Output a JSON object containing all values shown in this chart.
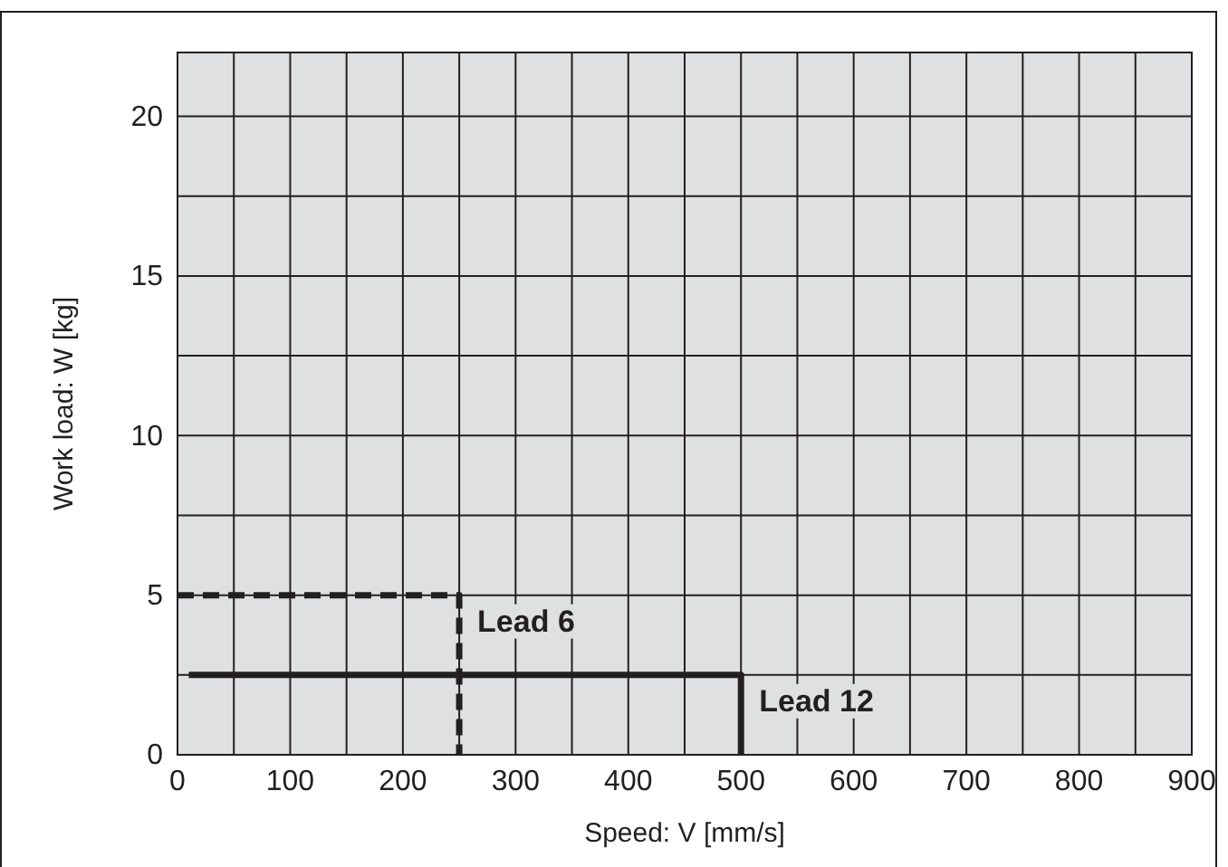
{
  "chart_data": {
    "type": "line",
    "xlabel": "Speed: V [mm/s]",
    "ylabel": "Work load: W [kg]",
    "xlim": [
      0,
      900
    ],
    "ylim": [
      0,
      22
    ],
    "xticks": [
      0,
      {
        "value": 50,
        "label": null
      },
      100,
      {
        "value": 150,
        "label": null
      },
      200,
      {
        "value": 250,
        "label": null
      },
      300,
      {
        "value": 350,
        "label": null
      },
      400,
      {
        "value": 450,
        "label": null
      },
      500,
      {
        "value": 550,
        "label": null
      },
      600,
      {
        "value": 650,
        "label": null
      },
      700,
      {
        "value": 750,
        "label": null
      },
      800,
      {
        "value": 850,
        "label": null
      },
      900
    ],
    "yticks": [
      0,
      {
        "value": 2.5,
        "label": null
      },
      5,
      {
        "value": 7.5,
        "label": null
      },
      10,
      {
        "value": 12.5,
        "label": null
      },
      15,
      {
        "value": 17.5,
        "label": null
      },
      20
    ],
    "grid": true,
    "marker": "none",
    "series": [
      {
        "name": "Lead 6",
        "color": "#231f20",
        "line_style": "dashed",
        "x": [
          0,
          250,
          250
        ],
        "values": [
          5,
          5,
          0
        ]
      },
      {
        "name": "Lead 12",
        "color": "#231f20",
        "line_style": "solid",
        "x": [
          10,
          500,
          500
        ],
        "values": [
          2.5,
          2.5,
          0
        ]
      }
    ]
  }
}
